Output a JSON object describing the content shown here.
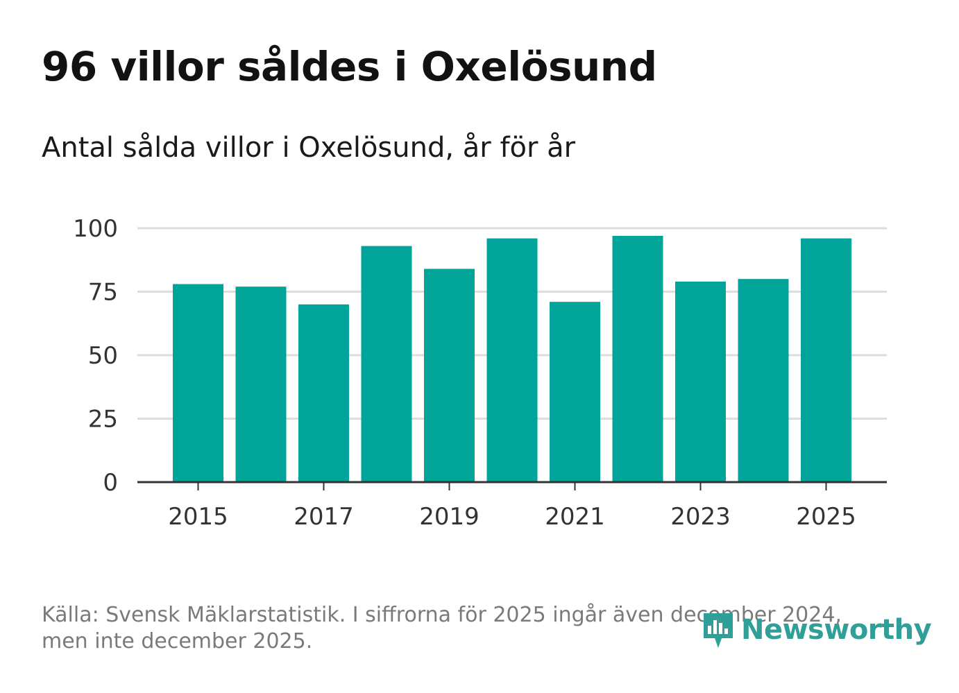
{
  "title": "96 villor såldes i Oxelösund",
  "subtitle": "Antal sålda villor i Oxelösund, år för år",
  "source": {
    "line1": "Källa: Svensk Mäklarstatistik. I siffrorna för 2025 ingår även december 2024,",
    "line2": "men inte december 2025."
  },
  "brand": {
    "name": "Newsworthy",
    "color": "#2f9f97"
  },
  "colors": {
    "bar": "#00a499",
    "grid": "#dddddd",
    "axis": "#333333",
    "text": "#333333"
  },
  "chart_data": {
    "type": "bar",
    "categories": [
      "2015",
      "2016",
      "2017",
      "2018",
      "2019",
      "2020",
      "2021",
      "2022",
      "2023",
      "2024",
      "2025"
    ],
    "values": [
      78,
      77,
      70,
      93,
      84,
      96,
      71,
      97,
      79,
      80,
      96
    ],
    "x_tick_labels": [
      "2015",
      "2017",
      "2019",
      "2021",
      "2023",
      "2025"
    ],
    "y_ticks": [
      0,
      25,
      50,
      75,
      100
    ],
    "ylim": [
      0,
      100
    ],
    "xlabel": "",
    "ylabel": "",
    "grid": true,
    "legend": "none"
  }
}
